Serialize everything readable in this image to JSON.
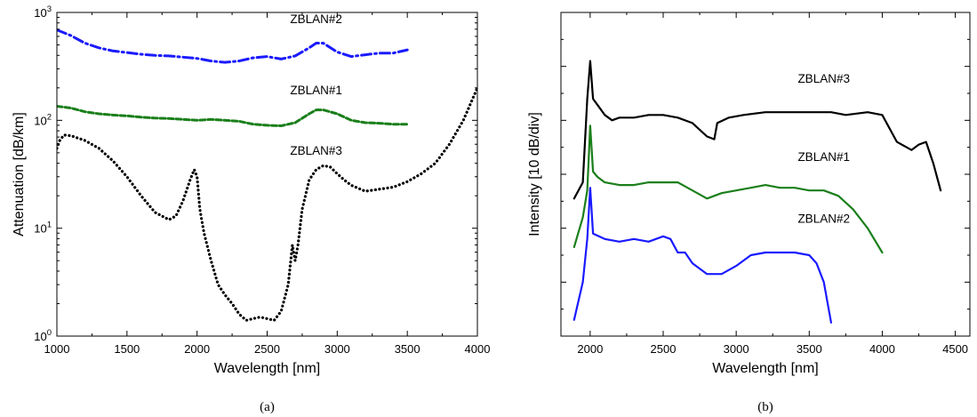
{
  "chart_data": [
    {
      "type": "line",
      "panel_caption": "(a)",
      "xlabel": "Wavelength [nm]",
      "ylabel": "Attenuation [dB/km]",
      "xlim": [
        1000,
        4000
      ],
      "ylim": [
        1,
        1000
      ],
      "yscale": "log",
      "grid": false,
      "legend": "none",
      "x_ticks": [
        "1000",
        "1500",
        "2000",
        "2500",
        "3000",
        "3500",
        "4000"
      ],
      "y_ticks": [
        {
          "base": "10",
          "exp": "0"
        },
        {
          "base": "10",
          "exp": "1"
        },
        {
          "base": "10",
          "exp": "2"
        },
        {
          "base": "10",
          "exp": "3"
        }
      ],
      "series": [
        {
          "name": "ZBLAN#2",
          "color": "#1a1aff",
          "style": "dash-dot",
          "points": [
            [
              1000,
              690
            ],
            [
              1100,
              610
            ],
            [
              1200,
              520
            ],
            [
              1300,
              470
            ],
            [
              1400,
              440
            ],
            [
              1500,
              425
            ],
            [
              1600,
              410
            ],
            [
              1700,
              400
            ],
            [
              1800,
              395
            ],
            [
              1900,
              385
            ],
            [
              2000,
              375
            ],
            [
              2100,
              355
            ],
            [
              2200,
              345
            ],
            [
              2300,
              355
            ],
            [
              2400,
              380
            ],
            [
              2500,
              390
            ],
            [
              2600,
              370
            ],
            [
              2700,
              395
            ],
            [
              2800,
              470
            ],
            [
              2850,
              520
            ],
            [
              2900,
              520
            ],
            [
              3000,
              430
            ],
            [
              3100,
              390
            ],
            [
              3200,
              405
            ],
            [
              3300,
              420
            ],
            [
              3400,
              420
            ],
            [
              3500,
              450
            ]
          ]
        },
        {
          "name": "ZBLAN#1",
          "color": "#1a7f1a",
          "style": "dashed",
          "points": [
            [
              1000,
              135
            ],
            [
              1100,
              130
            ],
            [
              1200,
              120
            ],
            [
              1300,
              115
            ],
            [
              1400,
              112
            ],
            [
              1500,
              110
            ],
            [
              1600,
              107
            ],
            [
              1700,
              105
            ],
            [
              1800,
              104
            ],
            [
              1900,
              102
            ],
            [
              2000,
              100
            ],
            [
              2100,
              102
            ],
            [
              2200,
              100
            ],
            [
              2300,
              98
            ],
            [
              2400,
              92
            ],
            [
              2500,
              90
            ],
            [
              2600,
              89
            ],
            [
              2700,
              95
            ],
            [
              2800,
              115
            ],
            [
              2850,
              125
            ],
            [
              2900,
              125
            ],
            [
              3000,
              115
            ],
            [
              3100,
              100
            ],
            [
              3200,
              95
            ],
            [
              3300,
              94
            ],
            [
              3400,
              92
            ],
            [
              3500,
              92
            ]
          ]
        },
        {
          "name": "ZBLAN#3",
          "color": "#000000",
          "style": "dotted",
          "points": [
            [
              1000,
              55
            ],
            [
              1020,
              65
            ],
            [
              1050,
              73
            ],
            [
              1100,
              72
            ],
            [
              1200,
              65
            ],
            [
              1300,
              55
            ],
            [
              1400,
              42
            ],
            [
              1500,
              30
            ],
            [
              1600,
              20
            ],
            [
              1700,
              14
            ],
            [
              1800,
              12
            ],
            [
              1850,
              13
            ],
            [
              1900,
              18
            ],
            [
              1950,
              28
            ],
            [
              1980,
              35
            ],
            [
              2000,
              30
            ],
            [
              2020,
              15
            ],
            [
              2050,
              9
            ],
            [
              2100,
              5
            ],
            [
              2150,
              3
            ],
            [
              2200,
              2.4
            ],
            [
              2250,
              2
            ],
            [
              2300,
              1.6
            ],
            [
              2350,
              1.4
            ],
            [
              2400,
              1.45
            ],
            [
              2450,
              1.5
            ],
            [
              2500,
              1.45
            ],
            [
              2550,
              1.4
            ],
            [
              2600,
              1.7
            ],
            [
              2650,
              3
            ],
            [
              2680,
              7
            ],
            [
              2700,
              5
            ],
            [
              2720,
              7
            ],
            [
              2750,
              15
            ],
            [
              2800,
              28
            ],
            [
              2850,
              35
            ],
            [
              2900,
              38
            ],
            [
              2950,
              37
            ],
            [
              3000,
              32
            ],
            [
              3050,
              28
            ],
            [
              3100,
              25
            ],
            [
              3200,
              22
            ],
            [
              3300,
              23
            ],
            [
              3400,
              24
            ],
            [
              3500,
              27
            ],
            [
              3600,
              32
            ],
            [
              3700,
              40
            ],
            [
              3800,
              60
            ],
            [
              3900,
              100
            ],
            [
              4000,
              200
            ]
          ]
        }
      ],
      "annotations": [
        {
          "text": "ZBLAN#2",
          "x": 2850,
          "y": 800
        },
        {
          "text": "ZBLAN#1",
          "x": 2850,
          "y": 175
        },
        {
          "text": "ZBLAN#3",
          "x": 2850,
          "y": 48
        }
      ]
    },
    {
      "type": "line",
      "panel_caption": "(b)",
      "xlabel": "Wavelength [nm]",
      "ylabel": "Intensity [10 dB/div]",
      "xlim": [
        1800,
        4600
      ],
      "ylim": [
        -6,
        0
      ],
      "yunit": "divisions (10 dB each)",
      "grid": false,
      "legend": "none",
      "x_ticks": [
        "2000",
        "2500",
        "3000",
        "3500",
        "4000",
        "4500"
      ],
      "y_tick_labels_shown": false,
      "series": [
        {
          "name": "ZBLAN#3",
          "color": "#000000",
          "style": "solid",
          "points": [
            [
              1890,
              -3.45
            ],
            [
              1950,
              -3.15
            ],
            [
              1980,
              -1.6
            ],
            [
              2000,
              -0.9
            ],
            [
              2020,
              -1.6
            ],
            [
              2060,
              -1.75
            ],
            [
              2100,
              -1.9
            ],
            [
              2150,
              -2.0
            ],
            [
              2200,
              -1.95
            ],
            [
              2300,
              -1.95
            ],
            [
              2400,
              -1.9
            ],
            [
              2500,
              -1.9
            ],
            [
              2600,
              -1.95
            ],
            [
              2700,
              -2.05
            ],
            [
              2800,
              -2.3
            ],
            [
              2850,
              -2.35
            ],
            [
              2870,
              -2.05
            ],
            [
              2950,
              -1.95
            ],
            [
              3050,
              -1.9
            ],
            [
              3200,
              -1.85
            ],
            [
              3350,
              -1.85
            ],
            [
              3500,
              -1.85
            ],
            [
              3650,
              -1.85
            ],
            [
              3750,
              -1.9
            ],
            [
              3900,
              -1.85
            ],
            [
              4000,
              -1.9
            ],
            [
              4100,
              -2.4
            ],
            [
              4200,
              -2.55
            ],
            [
              4250,
              -2.45
            ],
            [
              4300,
              -2.4
            ],
            [
              4350,
              -2.8
            ],
            [
              4400,
              -3.3
            ]
          ]
        },
        {
          "name": "ZBLAN#1",
          "color": "#1a7f1a",
          "style": "solid",
          "points": [
            [
              1890,
              -4.35
            ],
            [
              1950,
              -3.8
            ],
            [
              1980,
              -3.3
            ],
            [
              2000,
              -2.1
            ],
            [
              2020,
              -2.95
            ],
            [
              2050,
              -3.05
            ],
            [
              2100,
              -3.15
            ],
            [
              2200,
              -3.2
            ],
            [
              2300,
              -3.2
            ],
            [
              2400,
              -3.15
            ],
            [
              2500,
              -3.15
            ],
            [
              2600,
              -3.15
            ],
            [
              2700,
              -3.3
            ],
            [
              2800,
              -3.45
            ],
            [
              2900,
              -3.35
            ],
            [
              3000,
              -3.3
            ],
            [
              3100,
              -3.25
            ],
            [
              3200,
              -3.2
            ],
            [
              3300,
              -3.25
            ],
            [
              3400,
              -3.25
            ],
            [
              3500,
              -3.3
            ],
            [
              3600,
              -3.3
            ],
            [
              3700,
              -3.4
            ],
            [
              3800,
              -3.65
            ],
            [
              3900,
              -4.0
            ],
            [
              4000,
              -4.45
            ]
          ]
        },
        {
          "name": "ZBLAN#2",
          "color": "#1a1aff",
          "style": "solid",
          "points": [
            [
              1890,
              -5.7
            ],
            [
              1950,
              -5.0
            ],
            [
              1980,
              -4.2
            ],
            [
              2000,
              -3.25
            ],
            [
              2020,
              -4.1
            ],
            [
              2060,
              -4.15
            ],
            [
              2100,
              -4.2
            ],
            [
              2200,
              -4.25
            ],
            [
              2300,
              -4.2
            ],
            [
              2400,
              -4.25
            ],
            [
              2500,
              -4.15
            ],
            [
              2550,
              -4.2
            ],
            [
              2600,
              -4.45
            ],
            [
              2650,
              -4.45
            ],
            [
              2700,
              -4.65
            ],
            [
              2800,
              -4.85
            ],
            [
              2900,
              -4.85
            ],
            [
              3000,
              -4.7
            ],
            [
              3100,
              -4.5
            ],
            [
              3200,
              -4.45
            ],
            [
              3300,
              -4.45
            ],
            [
              3400,
              -4.45
            ],
            [
              3500,
              -4.5
            ],
            [
              3550,
              -4.65
            ],
            [
              3600,
              -5.0
            ],
            [
              3650,
              -5.75
            ]
          ]
        }
      ],
      "annotations": [
        {
          "text": "ZBLAN#3",
          "x": 3600,
          "y": -1.3
        },
        {
          "text": "ZBLAN#1",
          "x": 3600,
          "y": -2.75
        },
        {
          "text": "ZBLAN#2",
          "x": 3600,
          "y": -3.9
        }
      ]
    }
  ]
}
